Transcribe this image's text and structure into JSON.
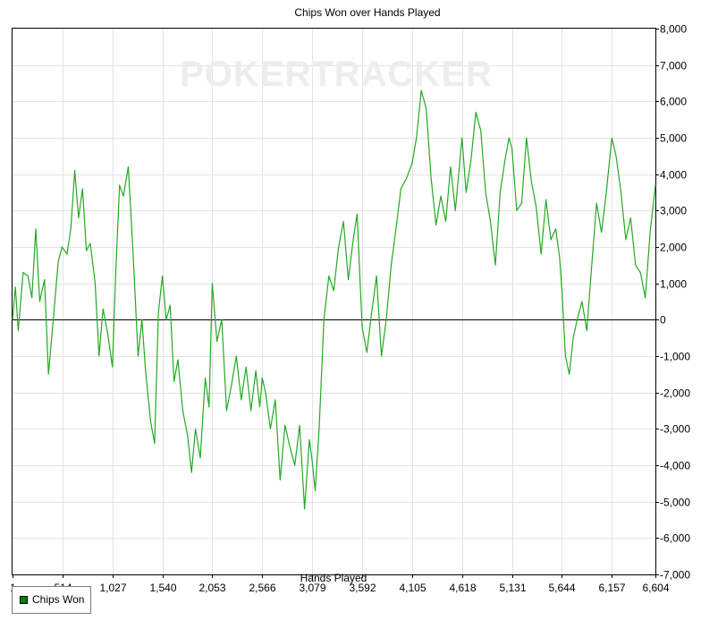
{
  "chart_data": {
    "type": "line",
    "title": "Chips Won over Hands Played",
    "xlabel": "Hands Played",
    "ylabel": "",
    "watermark": "POKERTRACKER",
    "xlim": [
      1,
      6604
    ],
    "ylim": [
      -7000,
      8000
    ],
    "x_ticks": [
      1,
      514,
      1027,
      1540,
      2053,
      2566,
      3079,
      3592,
      4105,
      4618,
      5131,
      5644,
      6157,
      6604
    ],
    "x_tick_labels": [
      "1",
      "514",
      "1,027",
      "1,540",
      "2,053",
      "2,566",
      "3,079",
      "3,592",
      "4,105",
      "4,618",
      "5,131",
      "5,644",
      "6,157",
      "6,604"
    ],
    "y_ticks": [
      8000,
      7000,
      6000,
      5000,
      4000,
      3000,
      2000,
      1000,
      0,
      -1000,
      -2000,
      -3000,
      -4000,
      -5000,
      -6000,
      -7000
    ],
    "y_tick_labels": [
      "8,000",
      "7,000",
      "6,000",
      "5,000",
      "4,000",
      "3,000",
      "2,000",
      "1,000",
      "0",
      "-1,000",
      "-2,000",
      "-3,000",
      "-4,000",
      "-5,000",
      "-6,000",
      "-7,000"
    ],
    "grid": true,
    "legend_position": "bottom-left",
    "colors": {
      "series": "#22aa22",
      "legend_swatch": "#008000",
      "grid": "#e4e4e4",
      "zero_line": "#000000"
    },
    "series": [
      {
        "name": "Chips Won",
        "x": [
          1,
          30,
          60,
          110,
          160,
          200,
          240,
          280,
          330,
          370,
          420,
          470,
          510,
          560,
          600,
          640,
          680,
          720,
          760,
          800,
          850,
          890,
          930,
          980,
          1027,
          1060,
          1100,
          1140,
          1190,
          1240,
          1290,
          1330,
          1370,
          1420,
          1460,
          1500,
          1540,
          1580,
          1620,
          1660,
          1700,
          1750,
          1800,
          1840,
          1880,
          1930,
          1980,
          2020,
          2053,
          2100,
          2150,
          2200,
          2250,
          2300,
          2350,
          2400,
          2450,
          2500,
          2540,
          2566,
          2600,
          2650,
          2700,
          2750,
          2800,
          2850,
          2900,
          2950,
          3000,
          3050,
          3079,
          3110,
          3150,
          3200,
          3250,
          3300,
          3350,
          3400,
          3450,
          3500,
          3540,
          3592,
          3640,
          3690,
          3740,
          3790,
          3840,
          3890,
          3940,
          3990,
          4050,
          4105,
          4150,
          4200,
          4250,
          4300,
          4350,
          4400,
          4450,
          4500,
          4550,
          4618,
          4660,
          4710,
          4760,
          4810,
          4860,
          4910,
          4960,
          5010,
          5060,
          5100,
          5131,
          5180,
          5230,
          5280,
          5330,
          5380,
          5430,
          5480,
          5530,
          5580,
          5620,
          5644,
          5680,
          5720,
          5760,
          5800,
          5850,
          5900,
          5950,
          6000,
          6050,
          6100,
          6157,
          6200,
          6250,
          6300,
          6350,
          6400,
          6450,
          6500,
          6550,
          6604
        ],
        "y": [
          0,
          900,
          -300,
          1300,
          1200,
          600,
          2500,
          500,
          1100,
          -1500,
          0,
          1600,
          2000,
          1800,
          2500,
          4100,
          2800,
          3600,
          1900,
          2100,
          1000,
          -1000,
          300,
          -400,
          -1300,
          1200,
          3700,
          3400,
          4200,
          1800,
          -1000,
          0,
          -1500,
          -2800,
          -3400,
          200,
          1200,
          0,
          400,
          -1700,
          -1100,
          -2500,
          -3200,
          -4200,
          -3000,
          -3800,
          -1600,
          -2400,
          1000,
          -600,
          0,
          -2500,
          -1800,
          -1000,
          -2200,
          -1300,
          -2500,
          -1400,
          -2400,
          -1600,
          -2000,
          -3000,
          -2200,
          -4400,
          -2900,
          -3500,
          -4000,
          -2900,
          -5200,
          -3300,
          -3900,
          -4700,
          -3000,
          0,
          1200,
          800,
          2000,
          2700,
          1100,
          2200,
          2900,
          -200,
          -900,
          200,
          1200,
          -1000,
          0,
          1500,
          2500,
          3600,
          3900,
          4300,
          5000,
          6300,
          5800,
          3900,
          2600,
          3400,
          2700,
          4200,
          3000,
          5000,
          3500,
          4400,
          5700,
          5200,
          3500,
          2700,
          1500,
          3500,
          4400,
          5000,
          4700,
          3000,
          3200,
          5000,
          3800,
          3100,
          1800,
          3300,
          2200,
          2500,
          1700,
          800,
          -1000,
          -1500,
          -500,
          0,
          500,
          -300,
          1500,
          3200,
          2400,
          3500,
          5000,
          4500,
          3500,
          2200,
          2800,
          1500,
          1300,
          600,
          2400,
          3700
        ]
      }
    ]
  },
  "legend": {
    "label": "Chips Won"
  }
}
